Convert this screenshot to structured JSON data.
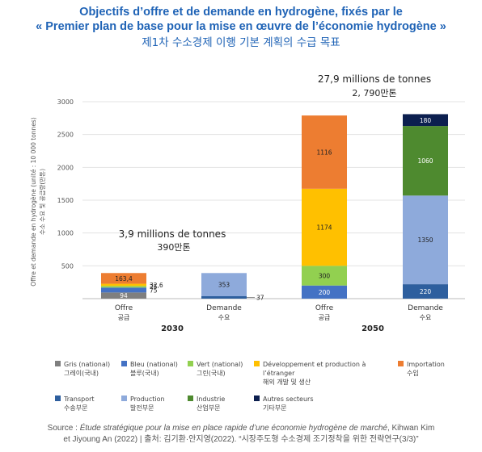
{
  "title": {
    "fr_line1": "Objectifs d’offre et de demande en hydrogène, fixés par le",
    "fr_line2": "« Premier plan de base pour la mise en œuvre de l’économie hydrogène »",
    "ko": "제1차 수소경제 이행 기본 계획의 수급 목표"
  },
  "annotations": {
    "total_2030": "3,9 millions de tonnes",
    "total_2030_ko": "390만톤",
    "total_2050": "27,9 millions de tonnes",
    "total_2050_ko": "2, 790만톤"
  },
  "legend": [
    {
      "key": "gris",
      "fr": "Gris (national)",
      "ko": "그레이(국내)",
      "color": "#7f7f7f"
    },
    {
      "key": "bleu",
      "fr": "Bleu (national)",
      "ko": "블루(국내)",
      "color": "#4472c4"
    },
    {
      "key": "vert",
      "fr": "Vert (national)",
      "ko": "그린(국내)",
      "color": "#92d050"
    },
    {
      "key": "dev",
      "fr": "Développement et production à l’étranger",
      "ko": "해외 개발 및 생산",
      "color": "#ffc000"
    },
    {
      "key": "import",
      "fr": "Importation",
      "ko": "수입",
      "color": "#ed7d31"
    },
    {
      "key": "transport",
      "fr": "Transport",
      "ko": "수송부문",
      "color": "#2e5f9e"
    },
    {
      "key": "production",
      "fr": "Production",
      "ko": "발전부문",
      "color": "#8eaadb"
    },
    {
      "key": "industrie",
      "fr": "Industrie",
      "ko": "산업부문",
      "color": "#4e8a2f"
    },
    {
      "key": "autres",
      "fr": "Autres secteurs",
      "ko": "기타부문",
      "color": "#0c1f4f"
    }
  ],
  "source": {
    "prefix": "Source : ",
    "title_italic": "Étude stratégique pour la mise en place rapide d’une économie hydrogène de marché",
    "rest1": ", Kihwan Kim",
    "line2": "et Jiyoung An (2022) | 출처: 김기환·안지영(2022). “시장주도형 수소경제 조기정착을 위한 전략연구(3/3)”"
  },
  "chart_data": {
    "type": "bar",
    "stacked": true,
    "ylabel": "Offre et demande en hydrogène (unité : 10 000 tonnes)",
    "ylabel_ko": "수소 수요 및 공급량(만톤)",
    "ylim": [
      0,
      3000
    ],
    "yticks": [
      500,
      1000,
      1500,
      2000,
      2500,
      3000
    ],
    "categories": [
      "Offre",
      "Demande",
      "Offre",
      "Demande"
    ],
    "categories_ko": [
      "공급",
      "수요",
      "공급",
      "수요"
    ],
    "groups": [
      {
        "label": "2030",
        "members": [
          0,
          1
        ]
      },
      {
        "label": "2050",
        "members": [
          2,
          3
        ]
      }
    ],
    "series": [
      {
        "name": "Gris (national)",
        "color": "#7f7f7f",
        "values": [
          94,
          null,
          null,
          null
        ]
      },
      {
        "name": "Bleu (national)",
        "color": "#4472c4",
        "values": [
          75,
          null,
          200,
          null
        ]
      },
      {
        "name": "Vert (national)",
        "color": "#92d050",
        "values": [
          25,
          null,
          300,
          null
        ]
      },
      {
        "name": "Développement et production à l’étranger",
        "color": "#ffc000",
        "values": [
          32.6,
          null,
          1174,
          null
        ]
      },
      {
        "name": "Importation",
        "color": "#ed7d31",
        "values": [
          163.4,
          null,
          1116,
          null
        ]
      },
      {
        "name": "Transport",
        "color": "#2e5f9e",
        "values": [
          null,
          37,
          null,
          220
        ]
      },
      {
        "name": "Production",
        "color": "#8eaadb",
        "values": [
          null,
          353,
          null,
          1350
        ]
      },
      {
        "name": "Industrie",
        "color": "#4e8a2f",
        "values": [
          null,
          null,
          null,
          1060
        ]
      },
      {
        "name": "Autres secteurs",
        "color": "#0c1f4f",
        "values": [
          null,
          null,
          null,
          180
        ]
      }
    ],
    "value_labels": [
      [
        "94",
        null,
        null,
        null
      ],
      [
        "75",
        null,
        "200",
        null
      ],
      [
        "25",
        null,
        "300",
        null
      ],
      [
        "32,6",
        null,
        "1174",
        null
      ],
      [
        "163,4",
        null,
        "1116",
        null
      ],
      [
        null,
        "37",
        null,
        "220"
      ],
      [
        null,
        "353",
        null,
        "1350"
      ],
      [
        null,
        null,
        null,
        "1060"
      ],
      [
        null,
        null,
        null,
        "180"
      ]
    ]
  }
}
